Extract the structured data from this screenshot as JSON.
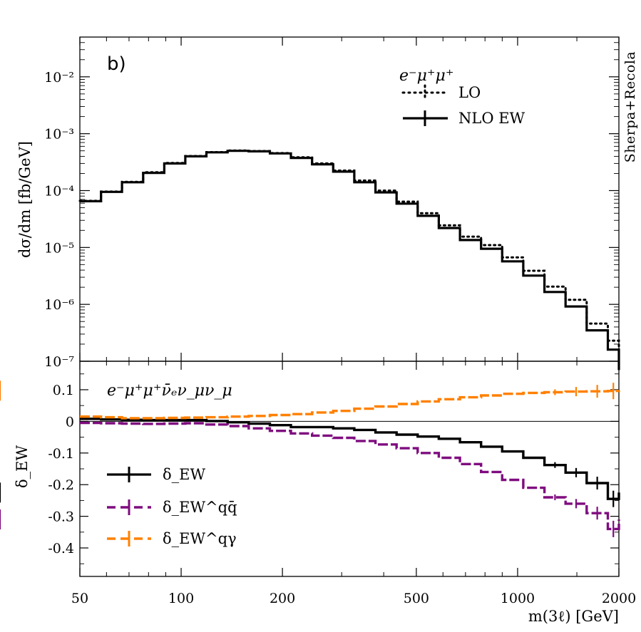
{
  "chart_data": [
    {
      "type": "line",
      "panel_tag": "b)",
      "process_label": "e⁻μ⁺μ⁺",
      "ylabel": "dσ/dm [fb/GeV]",
      "side_label": "Sherpa+Recola",
      "xscale": "log",
      "yscale": "log",
      "xlim": [
        50,
        2000
      ],
      "ylim": [
        1e-07,
        0.05
      ],
      "y_tick_labels": [
        "10⁻²",
        "10⁻³",
        "10⁻⁴",
        "10⁻⁵",
        "10⁻⁶",
        "10⁻⁷"
      ],
      "y_tick_values": [
        0.01,
        0.001,
        0.0001,
        1e-05,
        1e-06,
        1e-07
      ],
      "legend_position": "top-right",
      "bin_edges": [
        50,
        57.8,
        66.7,
        77.1,
        89.1,
        102.9,
        118.9,
        137.4,
        158.8,
        183.5,
        212,
        245,
        283.1,
        327.1,
        378,
        436.8,
        504.7,
        583.2,
        673.9,
        778.7,
        899.8,
        1039.8,
        1201.5,
        1388.4,
        1604.3,
        1853.9,
        2000
      ],
      "series": [
        {
          "name": "LO",
          "style": "dotted",
          "color": "#000000",
          "values": [
            6.6e-05,
            9.6e-05,
            0.000142,
            0.00021,
            0.000305,
            0.000405,
            0.000475,
            0.000505,
            0.000495,
            0.000455,
            0.000385,
            0.0003,
            0.000225,
            0.00015,
            0.0001,
            6.4e-05,
            4e-05,
            2.45e-05,
            1.55e-05,
            1.1e-05,
            6.7e-06,
            3.9e-06,
            2.05e-06,
            1.2e-06,
            4.6e-07,
            2.3e-07,
            1.1e-07
          ]
        },
        {
          "name": "NLO EW",
          "style": "solid",
          "color": "#000000",
          "values": [
            6.5e-05,
            9.5e-05,
            0.00014,
            0.000205,
            0.0003,
            0.0004,
            0.00047,
            0.0005,
            0.00049,
            0.00045,
            0.000375,
            0.00029,
            0.000215,
            0.00014,
            9.3e-05,
            5.9e-05,
            3.6e-05,
            2.2e-05,
            1.35e-05,
            9.5e-06,
            5.7e-06,
            3.2e-06,
            1.65e-06,
            9.2e-07,
            3.5e-07,
            1.6e-07,
            7e-08
          ]
        }
      ]
    },
    {
      "type": "line",
      "process_label": "e⁻μ⁺μ⁺ν̄ₑν_μν_μ",
      "ylabel": "δ_EW",
      "xlabel": "m(3ℓ) [GeV]",
      "xscale": "log",
      "xlim": [
        50,
        2000
      ],
      "ylim": [
        -0.49,
        0.19
      ],
      "y_tick_labels": [
        "0.1",
        "0",
        "-0.1",
        "-0.2",
        "-0.3",
        "-0.4"
      ],
      "y_tick_values": [
        0.1,
        0,
        -0.1,
        -0.2,
        -0.3,
        -0.4
      ],
      "x_tick_labels": [
        "50",
        "100",
        "200",
        "500",
        "1000",
        "2000"
      ],
      "x_tick_values": [
        50,
        100,
        200,
        500,
        1000,
        2000
      ],
      "legend_position": "bottom-left",
      "bin_edges": [
        50,
        57.8,
        66.7,
        77.1,
        89.1,
        102.9,
        118.9,
        137.4,
        158.8,
        183.5,
        212,
        245,
        283.1,
        327.1,
        378,
        436.8,
        504.7,
        583.2,
        673.9,
        778.7,
        899.8,
        1039.8,
        1201.5,
        1388.4,
        1604.3,
        1853.9,
        2000
      ],
      "series": [
        {
          "name": "δ_EW",
          "sub": "EW",
          "sup": "",
          "style": "solid",
          "color": "#000000",
          "values": [
            0.008,
            0.006,
            0.005,
            0.004,
            0.004,
            0.004,
            0.001,
            -0.003,
            -0.007,
            -0.012,
            -0.018,
            -0.018,
            -0.022,
            -0.027,
            -0.035,
            -0.042,
            -0.048,
            -0.055,
            -0.066,
            -0.08,
            -0.095,
            -0.115,
            -0.138,
            -0.162,
            -0.195,
            -0.245,
            -0.225
          ]
        },
        {
          "name": "δ_EW^qq̄",
          "sub": "EW",
          "sup": "qq̄",
          "style": "dashed",
          "color": "#7f0c7f",
          "values": [
            -0.005,
            -0.006,
            -0.007,
            -0.008,
            -0.007,
            -0.006,
            -0.01,
            -0.015,
            -0.022,
            -0.03,
            -0.038,
            -0.045,
            -0.052,
            -0.062,
            -0.073,
            -0.085,
            -0.1,
            -0.115,
            -0.135,
            -0.16,
            -0.185,
            -0.21,
            -0.24,
            -0.26,
            -0.29,
            -0.34,
            -0.31
          ]
        },
        {
          "name": "δ_EW^qγ",
          "sub": "EW",
          "sup": "qγ",
          "style": "dashed",
          "color": "#ff8000",
          "values": [
            0.015,
            0.013,
            0.01,
            0.01,
            0.011,
            0.012,
            0.013,
            0.015,
            0.017,
            0.02,
            0.023,
            0.028,
            0.033,
            0.04,
            0.047,
            0.055,
            0.063,
            0.07,
            0.076,
            0.082,
            0.087,
            0.09,
            0.092,
            0.094,
            0.095,
            0.096,
            0.097
          ]
        }
      ]
    }
  ]
}
